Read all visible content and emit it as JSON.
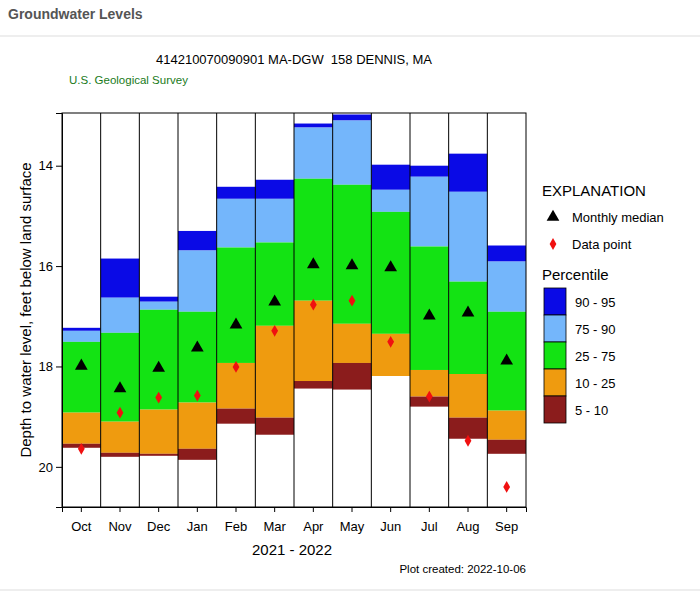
{
  "chart_data": {
    "type": "bar",
    "header": "Groundwater Levels",
    "title": "414210070090901 MA-DGW  158 DENNIS, MA",
    "subtitle": "U.S. Geological Survey",
    "ylabel": "Depth to water level, feet below land surface",
    "xlabel": "2021 - 2022",
    "note": "Plot created: 2022-10-06",
    "legend_title": "EXPLANATION",
    "legend_group_title": "Percentile",
    "legend": "right",
    "stacked": true,
    "categories": [
      "Oct",
      "Nov",
      "Dec",
      "Jan",
      "Feb",
      "Mar",
      "Apr",
      "May",
      "Jun",
      "Jul",
      "Aug",
      "Sep"
    ],
    "ylim": [
      20.8,
      12.95
    ],
    "yticks": [
      14,
      16,
      18,
      20
    ],
    "series": [
      {
        "name": "90 - 95",
        "color": "#0a0ae6",
        "type": "bar",
        "values": [
          [
            17.23,
            17.29
          ],
          [
            15.85,
            16.63
          ],
          [
            16.61,
            16.71
          ],
          [
            15.3,
            15.69
          ],
          [
            14.42,
            14.66
          ],
          [
            14.28,
            14.66
          ],
          [
            13.16,
            13.24
          ],
          [
            12.98,
            13.1
          ],
          [
            13.98,
            14.48
          ],
          [
            14.0,
            14.22
          ],
          [
            13.76,
            14.52
          ],
          [
            15.59,
            15.91
          ]
        ]
      },
      {
        "name": "75 - 90",
        "color": "#74b6fb",
        "type": "bar",
        "values": [
          [
            17.29,
            17.51
          ],
          [
            16.63,
            17.33
          ],
          [
            16.71,
            16.87
          ],
          [
            15.69,
            16.91
          ],
          [
            14.66,
            15.63
          ],
          [
            14.66,
            15.53
          ],
          [
            13.24,
            14.26
          ],
          [
            13.1,
            14.38
          ],
          [
            14.48,
            14.92
          ],
          [
            14.22,
            15.61
          ],
          [
            14.52,
            16.31
          ],
          [
            15.91,
            16.91
          ]
        ]
      },
      {
        "name": "25 - 75",
        "color": "#13e313",
        "type": "bar",
        "values": [
          [
            17.51,
            18.92
          ],
          [
            17.33,
            19.1
          ],
          [
            16.87,
            18.86
          ],
          [
            16.91,
            18.72
          ],
          [
            15.63,
            17.93
          ],
          [
            15.53,
            17.19
          ],
          [
            14.26,
            16.69
          ],
          [
            14.38,
            17.15
          ],
          [
            14.92,
            17.35
          ],
          [
            15.61,
            18.07
          ],
          [
            16.31,
            18.15
          ],
          [
            16.91,
            18.88
          ]
        ]
      },
      {
        "name": "10 - 25",
        "color": "#ef9b0f",
        "type": "bar",
        "values": [
          [
            18.92,
            19.54
          ],
          [
            19.1,
            19.72
          ],
          [
            18.86,
            19.74
          ],
          [
            18.72,
            19.64
          ],
          [
            17.93,
            18.84
          ],
          [
            17.19,
            19.02
          ],
          [
            16.69,
            18.29
          ],
          [
            17.15,
            17.93
          ],
          [
            17.35,
            18.19
          ],
          [
            18.07,
            18.6
          ],
          [
            18.15,
            19.02
          ],
          [
            18.88,
            19.46
          ]
        ]
      },
      {
        "name": "5 - 10",
        "color": "#8b1c1c",
        "type": "bar",
        "values": [
          [
            19.54,
            19.62
          ],
          [
            19.72,
            19.8
          ],
          [
            19.74,
            19.78
          ],
          [
            19.64,
            19.86
          ],
          [
            18.84,
            19.14
          ],
          [
            19.02,
            19.36
          ],
          [
            18.29,
            18.44
          ],
          [
            17.93,
            18.46
          ],
          [
            18.19,
            18.19
          ],
          [
            18.6,
            18.8
          ],
          [
            19.02,
            19.44
          ],
          [
            19.46,
            19.74
          ]
        ]
      },
      {
        "name": "Monthly median",
        "color": "#000000",
        "type": "scatter",
        "marker": "triangle",
        "values": [
          17.99,
          18.44,
          18.03,
          17.63,
          17.17,
          16.71,
          15.97,
          15.99,
          16.03,
          16.99,
          16.93,
          17.89
        ]
      },
      {
        "name": "Data point",
        "color": "#f01010",
        "type": "scatter",
        "marker": "diamond",
        "values": [
          19.64,
          18.92,
          18.62,
          18.58,
          18.01,
          17.29,
          16.77,
          16.69,
          17.51,
          18.6,
          19.48,
          20.4
        ]
      }
    ]
  }
}
